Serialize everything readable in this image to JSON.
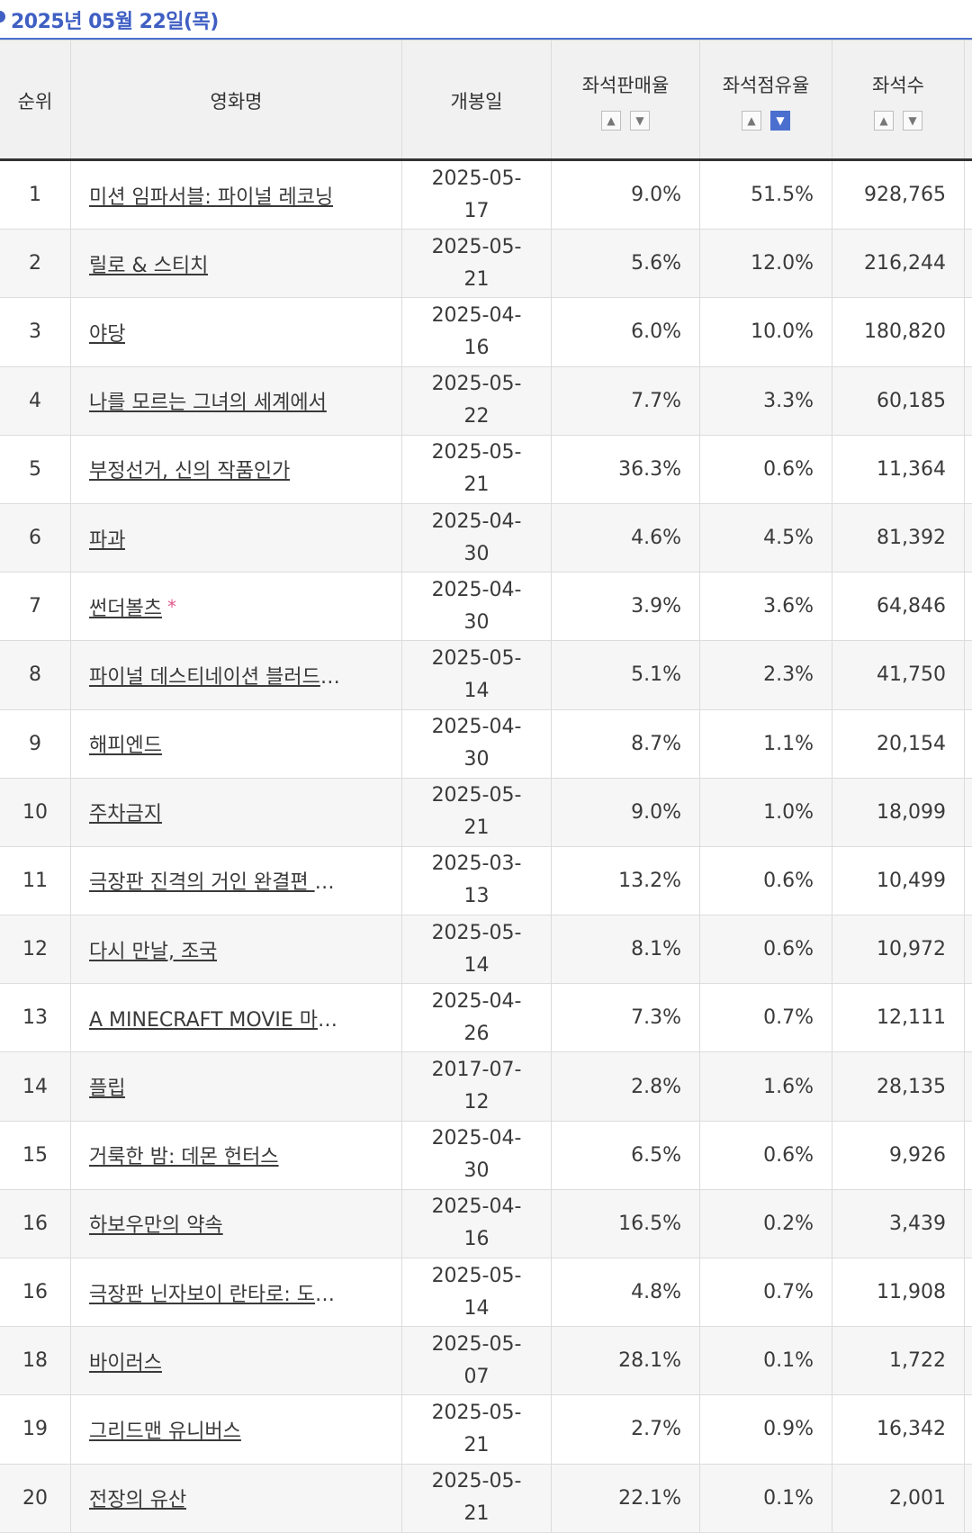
{
  "header_date": "2025년 05월 22일(목)",
  "columns": {
    "rank": "순위",
    "title": "영화명",
    "release": "개봉일",
    "sales_rate": "좌석판매율",
    "share": "좌석점유율",
    "seats": "좌석수"
  },
  "sort_icons": {
    "up": "^",
    "down": "v"
  },
  "rows": [
    {
      "rank": "1",
      "title": "미션 임파서블: 파이널 레코닝",
      "release": "2025-05-17",
      "sales_rate": "9.0%",
      "share": "51.5%",
      "seats": "928,765"
    },
    {
      "rank": "2",
      "title": "릴로 & 스티치",
      "release": "2025-05-21",
      "sales_rate": "5.6%",
      "share": "12.0%",
      "seats": "216,244"
    },
    {
      "rank": "3",
      "title": "야당",
      "release": "2025-04-16",
      "sales_rate": "6.0%",
      "share": "10.0%",
      "seats": "180,820"
    },
    {
      "rank": "4",
      "title": "나를 모르는 그녀의 세계에서",
      "release": "2025-05-22",
      "sales_rate": "7.7%",
      "share": "3.3%",
      "seats": "60,185"
    },
    {
      "rank": "5",
      "title": "부정선거, 신의 작품인가",
      "release": "2025-05-21",
      "sales_rate": "36.3%",
      "share": "0.6%",
      "seats": "11,364"
    },
    {
      "rank": "6",
      "title": "파과",
      "release": "2025-04-30",
      "sales_rate": "4.6%",
      "share": "4.5%",
      "seats": "81,392"
    },
    {
      "rank": "7",
      "title": "썬더볼츠",
      "star": "*",
      "release": "2025-04-30",
      "sales_rate": "3.9%",
      "share": "3.6%",
      "seats": "64,846"
    },
    {
      "rank": "8",
      "title": "파이널 데스티네이션 블러드라인",
      "release": "2025-05-14",
      "sales_rate": "5.1%",
      "share": "2.3%",
      "seats": "41,750"
    },
    {
      "rank": "9",
      "title": "해피엔드",
      "release": "2025-04-30",
      "sales_rate": "8.7%",
      "share": "1.1%",
      "seats": "20,154"
    },
    {
      "rank": "10",
      "title": "주차금지",
      "release": "2025-05-21",
      "sales_rate": "9.0%",
      "share": "1.0%",
      "seats": "18,099"
    },
    {
      "rank": "11",
      "title": "극장판 진격의 거인 완결편 더 라스…",
      "release": "2025-03-13",
      "sales_rate": "13.2%",
      "share": "0.6%",
      "seats": "10,499"
    },
    {
      "rank": "12",
      "title": "다시 만날, 조국",
      "release": "2025-05-14",
      "sales_rate": "8.1%",
      "share": "0.6%",
      "seats": "10,972"
    },
    {
      "rank": "13",
      "title": "A MINECRAFT MOVIE 마인크…",
      "release": "2025-04-26",
      "sales_rate": "7.3%",
      "share": "0.7%",
      "seats": "12,111"
    },
    {
      "rank": "14",
      "title": "플립",
      "release": "2017-07-12",
      "sales_rate": "2.8%",
      "share": "1.6%",
      "seats": "28,135"
    },
    {
      "rank": "15",
      "title": "거룩한 밤: 데몬 헌터스",
      "release": "2025-04-30",
      "sales_rate": "6.5%",
      "share": "0.6%",
      "seats": "9,926"
    },
    {
      "rank": "16",
      "title": "하보우만의 약속",
      "release": "2025-04-16",
      "sales_rate": "16.5%",
      "share": "0.2%",
      "seats": "3,439"
    },
    {
      "rank": "16",
      "title": "극장판 닌자보이 란타로: 도쿠타케…",
      "release": "2025-05-14",
      "sales_rate": "4.8%",
      "share": "0.7%",
      "seats": "11,908"
    },
    {
      "rank": "18",
      "title": "바이러스",
      "release": "2025-05-07",
      "sales_rate": "28.1%",
      "share": "0.1%",
      "seats": "1,722"
    },
    {
      "rank": "19",
      "title": "그리드맨 유니버스",
      "release": "2025-05-21",
      "sales_rate": "2.7%",
      "share": "0.9%",
      "seats": "16,342"
    },
    {
      "rank": "20",
      "title": "전장의 유산",
      "release": "2025-05-21",
      "sales_rate": "22.1%",
      "share": "0.1%",
      "seats": "2,001"
    }
  ]
}
